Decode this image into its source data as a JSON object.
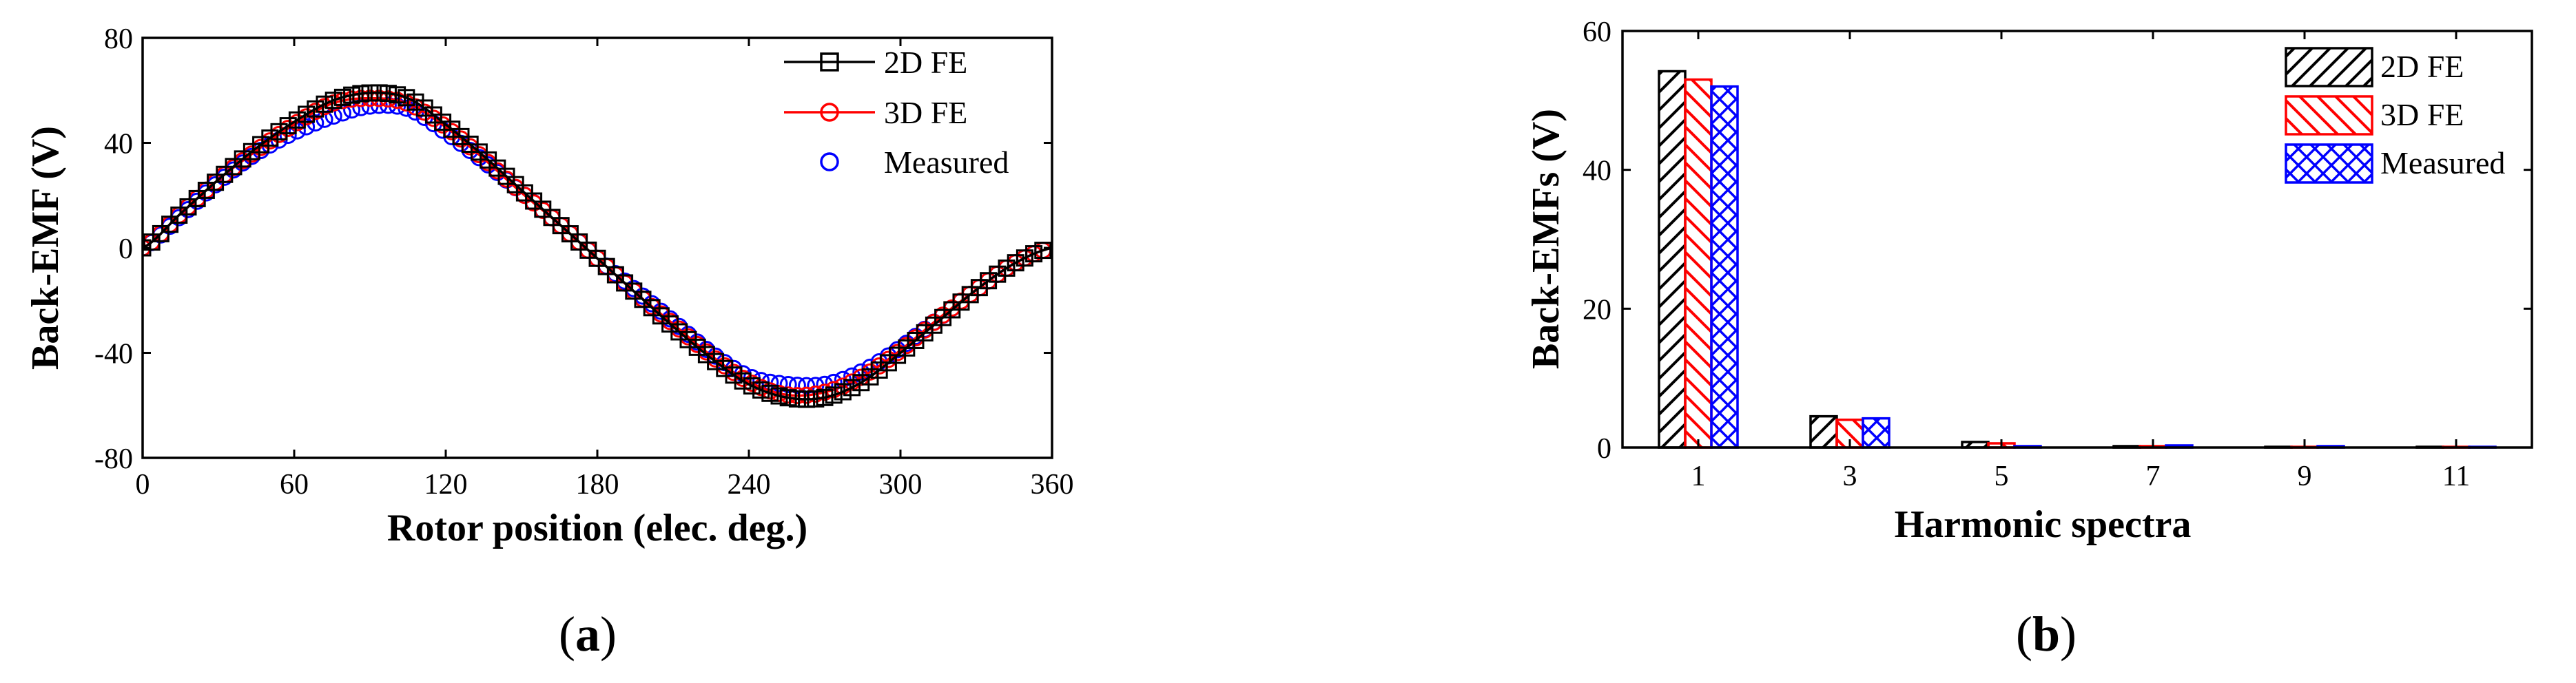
{
  "panels": {
    "a": {
      "label_open": "(",
      "label_letter": "a",
      "label_close": ")"
    },
    "b": {
      "label_open": "(",
      "label_letter": "b",
      "label_close": ")"
    }
  },
  "chart_data": [
    {
      "type": "line",
      "xlabel": "Rotor position (elec. deg.)",
      "ylabel": "Back-EMF (V)",
      "xlim": [
        0,
        360
      ],
      "ylim": [
        -80,
        80
      ],
      "xticks": [
        "0",
        "60",
        "120",
        "180",
        "240",
        "300",
        "360"
      ],
      "yticks": [
        "-80",
        "-40",
        "0",
        "40",
        "80"
      ],
      "grid": false,
      "legend_position": "top-right",
      "x": [
        0,
        15,
        30,
        45,
        60,
        75,
        90,
        105,
        120,
        135,
        150,
        165,
        180,
        195,
        210,
        225,
        240,
        255,
        270,
        285,
        300,
        315,
        330,
        345,
        360
      ],
      "series": [
        {
          "name": "2D FE",
          "color": "#000000",
          "marker": "square",
          "values": [
            0,
            13,
            26,
            38,
            48,
            56,
            59,
            57,
            47,
            35,
            22,
            9,
            -4,
            -17,
            -30,
            -42,
            -52,
            -57,
            -57,
            -51,
            -40,
            -28,
            -16,
            -6,
            0
          ]
        },
        {
          "name": "3D FE",
          "color": "#ff0000",
          "marker": "circle",
          "values": [
            0,
            13,
            26,
            37,
            47,
            55,
            57,
            55,
            46,
            34,
            21,
            9,
            -4,
            -17,
            -29,
            -41,
            -51,
            -56,
            -55,
            -49,
            -39,
            -27,
            -16,
            -6,
            0
          ]
        },
        {
          "name": "Measured",
          "color": "#0000ff",
          "marker": "circle-only",
          "values": [
            0,
            12,
            25,
            36,
            44,
            50,
            54,
            53,
            44,
            33,
            21,
            9,
            -4,
            -16,
            -28,
            -40,
            -49,
            -52,
            -52,
            -47,
            -38,
            -27,
            -16,
            -6,
            0
          ]
        }
      ]
    },
    {
      "type": "bar",
      "xlabel": "Harmonic spectra",
      "ylabel": "Back-EMFs (V)",
      "ylim": [
        0,
        60
      ],
      "yticks": [
        "0",
        "20",
        "40",
        "60"
      ],
      "categories": [
        "1",
        "3",
        "5",
        "7",
        "9",
        "11"
      ],
      "grid": false,
      "legend_position": "top-right",
      "series": [
        {
          "name": "2D FE",
          "color": "#000000",
          "hatch": "diagonal-right",
          "values": [
            54.2,
            4.5,
            0.8,
            0.2,
            0.1,
            0.1
          ]
        },
        {
          "name": "3D FE",
          "color": "#ff0000",
          "hatch": "diagonal-left",
          "values": [
            53.0,
            4.0,
            0.6,
            0.2,
            0.1,
            0.1
          ]
        },
        {
          "name": "Measured",
          "color": "#0000ff",
          "hatch": "crosshatch",
          "values": [
            52.0,
            4.2,
            0.2,
            0.3,
            0.2,
            0.1
          ]
        }
      ]
    }
  ]
}
